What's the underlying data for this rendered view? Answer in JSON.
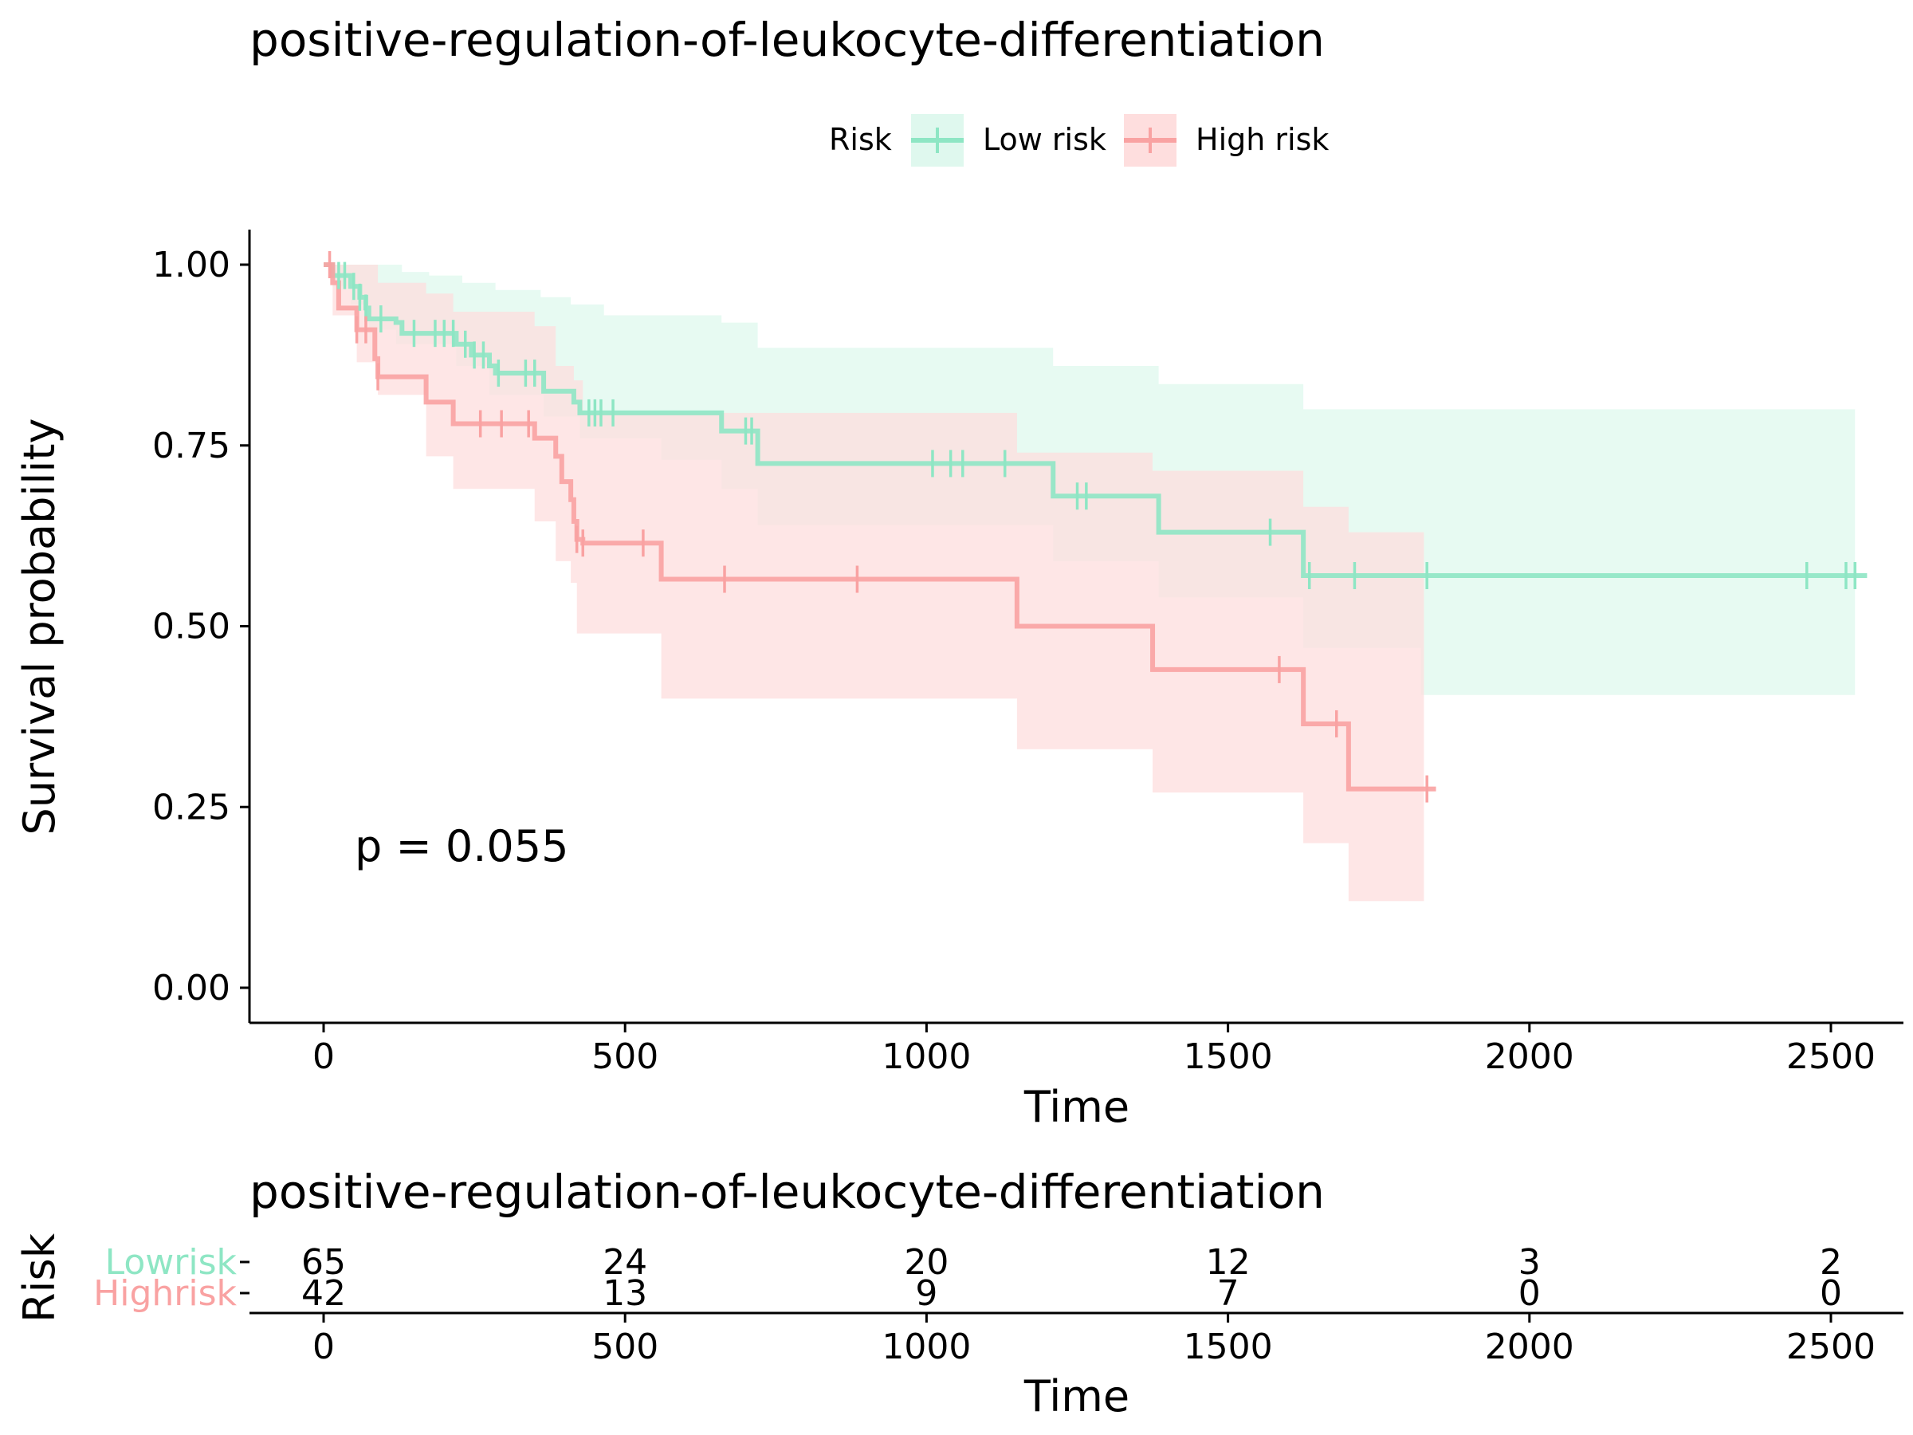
{
  "chart_data": [
    {
      "type": "line",
      "subtype": "kaplan-meier",
      "title": "positive-regulation-of-leukocyte-differentiation",
      "xlabel": "Time",
      "ylabel": "Survival probability",
      "xlim": [
        -120,
        2620
      ],
      "ylim": [
        -0.05,
        1.05
      ],
      "x_ticks": [
        0,
        500,
        1000,
        1500,
        2000,
        2500
      ],
      "x_tick_labels": [
        "0",
        "500",
        "1000",
        "1500",
        "2000",
        "2500"
      ],
      "y_ticks": [
        0,
        0.25,
        0.5,
        0.75,
        1
      ],
      "y_tick_labels": [
        "0.00",
        "0.25",
        "0.50",
        "0.75",
        "1.00"
      ],
      "annotation": "p = 0.055",
      "legend": {
        "title": "Risk",
        "position": "top",
        "labels": [
          "Low risk",
          "High risk"
        ]
      },
      "series": [
        {
          "name": "Low risk",
          "color": "#8ee6c4",
          "fill": "#dff8ee",
          "steps": [
            [
              0,
              1.0
            ],
            [
              15,
              0.985
            ],
            [
              45,
              0.97
            ],
            [
              60,
              0.955
            ],
            [
              70,
              0.94
            ],
            [
              75,
              0.925
            ],
            [
              120,
              0.92
            ],
            [
              130,
              0.905
            ],
            [
              220,
              0.89
            ],
            [
              245,
              0.875
            ],
            [
              275,
              0.86
            ],
            [
              285,
              0.85
            ],
            [
              365,
              0.825
            ],
            [
              415,
              0.81
            ],
            [
              425,
              0.795
            ],
            [
              660,
              0.77
            ],
            [
              720,
              0.725
            ],
            [
              1210,
              0.68
            ],
            [
              1385,
              0.63
            ],
            [
              1625,
              0.57
            ]
          ],
          "end_x": 2560,
          "lower": [
            [
              0,
              1.0
            ],
            [
              15,
              0.97
            ],
            [
              45,
              0.945
            ],
            [
              75,
              0.91
            ],
            [
              120,
              0.89
            ],
            [
              220,
              0.86
            ],
            [
              275,
              0.82
            ],
            [
              365,
              0.79
            ],
            [
              425,
              0.76
            ],
            [
              560,
              0.73
            ],
            [
              660,
              0.69
            ],
            [
              720,
              0.64
            ],
            [
              1210,
              0.59
            ],
            [
              1385,
              0.54
            ],
            [
              1625,
              0.47
            ],
            [
              1820,
              0.405
            ]
          ],
          "upper": [
            [
              0,
              1.0
            ],
            [
              90,
              1.0
            ],
            [
              130,
              0.99
            ],
            [
              175,
              0.985
            ],
            [
              230,
              0.975
            ],
            [
              285,
              0.965
            ],
            [
              360,
              0.955
            ],
            [
              410,
              0.945
            ],
            [
              465,
              0.93
            ],
            [
              660,
              0.92
            ],
            [
              720,
              0.885
            ],
            [
              1210,
              0.86
            ],
            [
              1385,
              0.835
            ],
            [
              1625,
              0.8
            ]
          ],
          "band_end_x": 2540,
          "censor_x": [
            25,
            35,
            50,
            60,
            70,
            95,
            150,
            185,
            200,
            215,
            235,
            250,
            265,
            290,
            335,
            350,
            440,
            450,
            460,
            480,
            700,
            710,
            1010,
            1040,
            1060,
            1130,
            1250,
            1265,
            1570,
            1635,
            1710,
            1830,
            2460,
            2525,
            2540
          ]
        },
        {
          "name": "High risk",
          "color": "#f9a2a2",
          "fill": "#fedede",
          "steps": [
            [
              0,
              1.0
            ],
            [
              15,
              0.975
            ],
            [
              25,
              0.94
            ],
            [
              55,
              0.91
            ],
            [
              85,
              0.87
            ],
            [
              90,
              0.845
            ],
            [
              170,
              0.81
            ],
            [
              215,
              0.78
            ],
            [
              350,
              0.76
            ],
            [
              385,
              0.735
            ],
            [
              395,
              0.7
            ],
            [
              410,
              0.675
            ],
            [
              415,
              0.645
            ],
            [
              420,
              0.62
            ],
            [
              430,
              0.615
            ],
            [
              560,
              0.565
            ],
            [
              1150,
              0.5
            ],
            [
              1375,
              0.44
            ],
            [
              1625,
              0.365
            ],
            [
              1700,
              0.275
            ]
          ],
          "end_x": 1845,
          "lower": [
            [
              0,
              1.0
            ],
            [
              15,
              0.93
            ],
            [
              55,
              0.865
            ],
            [
              90,
              0.82
            ],
            [
              170,
              0.735
            ],
            [
              215,
              0.69
            ],
            [
              350,
              0.645
            ],
            [
              385,
              0.59
            ],
            [
              410,
              0.56
            ],
            [
              420,
              0.49
            ],
            [
              560,
              0.4
            ],
            [
              1150,
              0.33
            ],
            [
              1375,
              0.27
            ],
            [
              1625,
              0.2
            ],
            [
              1700,
              0.12
            ]
          ],
          "upper": [
            [
              0,
              1.0
            ],
            [
              85,
              1.0
            ],
            [
              90,
              0.975
            ],
            [
              170,
              0.96
            ],
            [
              215,
              0.935
            ],
            [
              350,
              0.915
            ],
            [
              385,
              0.86
            ],
            [
              415,
              0.84
            ],
            [
              430,
              0.795
            ],
            [
              560,
              0.795
            ],
            [
              660,
              0.795
            ],
            [
              720,
              0.795
            ],
            [
              1150,
              0.74
            ],
            [
              1375,
              0.715
            ],
            [
              1625,
              0.665
            ],
            [
              1700,
              0.63
            ]
          ],
          "band_end_x": 1825,
          "censor_x": [
            10,
            55,
            70,
            90,
            260,
            295,
            340,
            420,
            430,
            530,
            665,
            885,
            1585,
            1680,
            1830
          ]
        }
      ]
    },
    {
      "type": "table",
      "title": "positive-regulation-of-leukocyte-differentiation",
      "xlabel": "Time",
      "ylabel": "Risk",
      "xlim": [
        -120,
        2620
      ],
      "x_ticks": [
        0,
        500,
        1000,
        1500,
        2000,
        2500
      ],
      "x_tick_labels": [
        "0",
        "500",
        "1000",
        "1500",
        "2000",
        "2500"
      ],
      "rows": [
        {
          "label": "Lowrisk",
          "color": "#8ee6c4",
          "values": [
            "65",
            "24",
            "20",
            "12",
            "3",
            "2"
          ]
        },
        {
          "label": "Highrisk",
          "color": "#f9a2a2",
          "values": [
            "42",
            "13",
            "9",
            "7",
            "0",
            "0"
          ]
        }
      ]
    }
  ]
}
